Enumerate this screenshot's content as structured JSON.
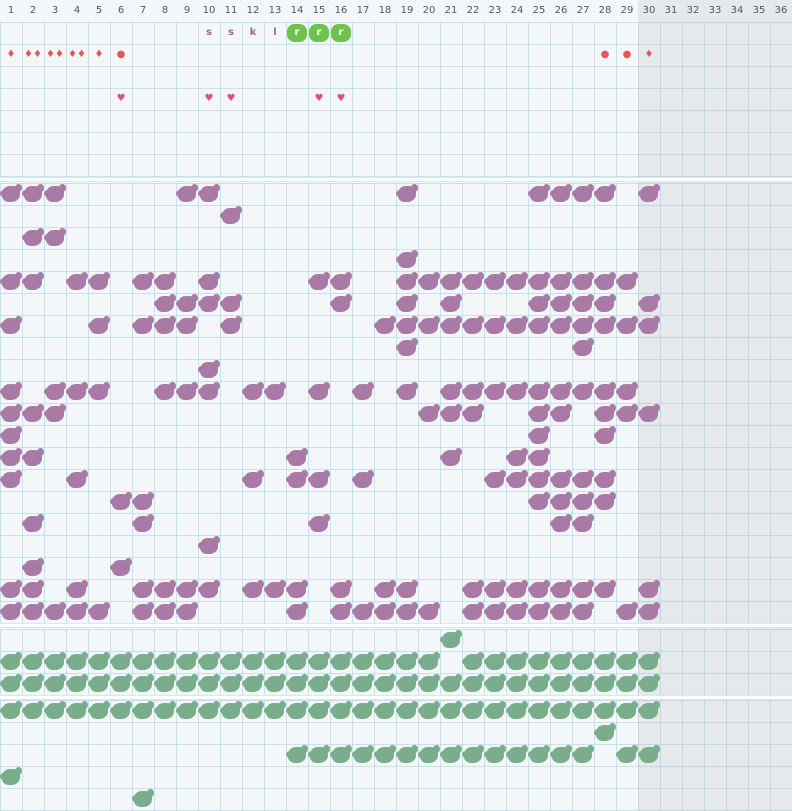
{
  "columns": [
    "1",
    "2",
    "3",
    "4",
    "5",
    "6",
    "7",
    "8",
    "9",
    "10",
    "11",
    "12",
    "13",
    "14",
    "15",
    "16",
    "17",
    "18",
    "19",
    "20",
    "21",
    "22",
    "23",
    "24",
    "25",
    "26",
    "27",
    "28",
    "29",
    "30",
    "31",
    "32",
    "33",
    "34",
    "35",
    "36"
  ],
  "colors": {
    "purple": "#a97aa6",
    "teal": "#79ad8c",
    "lime": "#6cc44a",
    "red": "#e0585a",
    "pink": "#dd5577",
    "letter": "#a46590"
  },
  "letters": [
    {
      "col": 10,
      "row": 1,
      "text": "s"
    },
    {
      "col": 11,
      "row": 1,
      "text": "s"
    },
    {
      "col": 12,
      "row": 1,
      "text": "k"
    },
    {
      "col": 13,
      "row": 1,
      "text": "l"
    }
  ],
  "tags": [
    {
      "col": 14,
      "row": 1,
      "text": "r"
    },
    {
      "col": 15,
      "row": 1,
      "text": "r"
    },
    {
      "col": 16,
      "row": 1,
      "text": "r"
    }
  ],
  "symbols": [
    {
      "col": 1,
      "row": 2,
      "text": "♦",
      "color": "red"
    },
    {
      "col": 2,
      "row": 2,
      "text": "♦♦",
      "color": "red"
    },
    {
      "col": 3,
      "row": 2,
      "text": "♦♦",
      "color": "red"
    },
    {
      "col": 4,
      "row": 2,
      "text": "♦♦",
      "color": "red"
    },
    {
      "col": 5,
      "row": 2,
      "text": "♦",
      "color": "red"
    },
    {
      "col": 6,
      "row": 2,
      "text": "●",
      "color": "red"
    },
    {
      "col": 28,
      "row": 2,
      "text": "●",
      "color": "red"
    },
    {
      "col": 29,
      "row": 2,
      "text": "●",
      "color": "red"
    },
    {
      "col": 30,
      "row": 2,
      "text": "♦",
      "color": "red"
    },
    {
      "col": 6,
      "row": 4,
      "text": "♥",
      "color": "pink"
    },
    {
      "col": 10,
      "row": 4,
      "text": "♥",
      "color": "pink"
    },
    {
      "col": 11,
      "row": 4,
      "text": "♥",
      "color": "pink"
    },
    {
      "col": 15,
      "row": 4,
      "text": "♥",
      "color": "pink"
    },
    {
      "col": 16,
      "row": 4,
      "text": "♥",
      "color": "pink"
    }
  ],
  "purple_rows": [
    [
      1,
      2,
      3,
      9,
      10,
      19,
      25,
      26,
      27,
      28,
      30
    ],
    [
      11
    ],
    [
      2,
      3
    ],
    [
      19
    ],
    [
      1,
      2,
      4,
      5,
      7,
      8,
      10,
      15,
      16,
      19,
      20,
      21,
      22,
      23,
      24,
      25,
      26,
      27,
      28,
      29
    ],
    [
      8,
      9,
      10,
      11,
      16,
      19,
      21,
      25,
      26,
      27,
      28,
      30
    ],
    [
      1,
      5,
      7,
      8,
      9,
      11,
      18,
      19,
      20,
      21,
      22,
      23,
      24,
      25,
      26,
      27,
      28,
      29,
      30
    ],
    [
      19,
      27
    ],
    [
      10
    ],
    [
      1,
      3,
      4,
      5,
      8,
      9,
      10,
      12,
      13,
      15,
      17,
      19,
      21,
      22,
      23,
      24,
      25,
      26,
      27,
      28,
      29
    ],
    [
      1,
      2,
      3,
      20,
      21,
      22,
      25,
      26,
      28,
      29,
      30
    ],
    [
      1,
      25,
      28
    ],
    [
      1,
      2,
      14,
      21,
      24,
      25
    ],
    [
      1,
      4,
      12,
      14,
      15,
      17,
      23,
      24,
      25,
      26,
      27,
      28
    ],
    [
      6,
      7,
      25,
      26,
      27,
      28
    ],
    [
      2,
      7,
      15,
      26,
      27
    ],
    [
      10
    ],
    [
      2,
      6
    ],
    [
      1,
      2,
      4,
      7,
      8,
      9,
      10,
      12,
      13,
      14,
      16,
      18,
      19,
      22,
      23,
      24,
      25,
      26,
      27,
      28,
      30
    ],
    [
      1,
      2,
      3,
      4,
      5,
      7,
      8,
      9,
      14,
      16,
      17,
      18,
      19,
      20,
      22,
      23,
      24,
      25,
      26,
      27,
      29,
      30
    ]
  ],
  "teal_rows_a": [
    [
      21
    ],
    [
      1,
      2,
      3,
      4,
      5,
      6,
      7,
      8,
      9,
      10,
      11,
      12,
      13,
      14,
      15,
      16,
      17,
      18,
      19,
      20,
      22,
      23,
      24,
      25,
      26,
      27,
      28,
      29,
      30
    ],
    [
      1,
      2,
      3,
      4,
      5,
      6,
      7,
      8,
      9,
      10,
      11,
      12,
      13,
      14,
      15,
      16,
      17,
      18,
      19,
      20,
      21,
      22,
      23,
      24,
      25,
      26,
      27,
      28,
      29,
      30
    ]
  ],
  "teal_rows_b": [
    [
      1,
      2,
      3,
      4,
      5,
      6,
      7,
      8,
      9,
      10,
      11,
      12,
      13,
      14,
      15,
      16,
      17,
      18,
      19,
      20,
      21,
      22,
      23,
      24,
      25,
      26,
      27,
      28,
      29,
      30
    ],
    [
      28
    ],
    [
      14,
      15,
      16,
      17,
      18,
      19,
      20,
      21,
      22,
      23,
      24,
      25,
      26,
      27,
      29,
      30
    ],
    [
      1
    ],
    [
      7
    ]
  ]
}
